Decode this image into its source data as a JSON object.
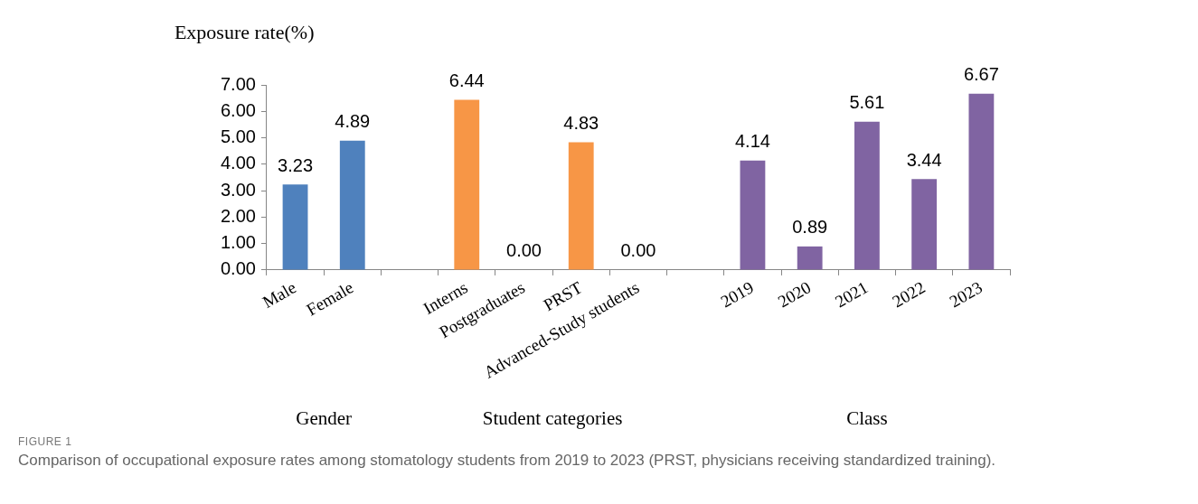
{
  "chart_data": {
    "type": "bar",
    "ylabel": "Exposure rate(%)",
    "categories": [
      "Male",
      "Female",
      null,
      "Interns",
      "Postgraduates",
      "PRST",
      "Advanced-Study students",
      null,
      "2019",
      "2020",
      "2021",
      "2022",
      "2023"
    ],
    "values": [
      3.23,
      4.89,
      null,
      6.44,
      0,
      4.83,
      0,
      null,
      4.14,
      0.89,
      5.61,
      3.44,
      6.67
    ],
    "value_labels": [
      "3.23",
      "4.89",
      null,
      "6.44",
      "0.00",
      "4.83",
      "0.00",
      null,
      "4.14",
      "0.89",
      "5.61",
      "3.44",
      "6.67"
    ],
    "colors": [
      "#4f81bd",
      "#4f81bd",
      "#ffffff",
      "#f79646",
      "#f79646",
      "#f79646",
      "#f79646",
      "#ffffff",
      "#8064a2",
      "#8064a2",
      "#8064a2",
      "#8064a2",
      "#8064a2"
    ],
    "ylim": [
      0,
      7
    ],
    "yticks": [
      {
        "value": 0,
        "label": "0.00"
      },
      {
        "value": 1,
        "label": "1.00"
      },
      {
        "value": 2,
        "label": "2.00"
      },
      {
        "value": 3,
        "label": "3.00"
      },
      {
        "value": 4,
        "label": "4.00"
      },
      {
        "value": 5,
        "label": "5.00"
      },
      {
        "value": 6,
        "label": "6.00"
      },
      {
        "value": 7,
        "label": "7.00"
      }
    ],
    "grid": false,
    "legend": false,
    "annotations": [
      "Gender",
      "Student categories",
      "Class",
      "FIGURE 1",
      "Comparison of occupational exposure rates among stomatology students from 2019 to 2023 (PRST, physicians receiving standardized training)."
    ]
  }
}
